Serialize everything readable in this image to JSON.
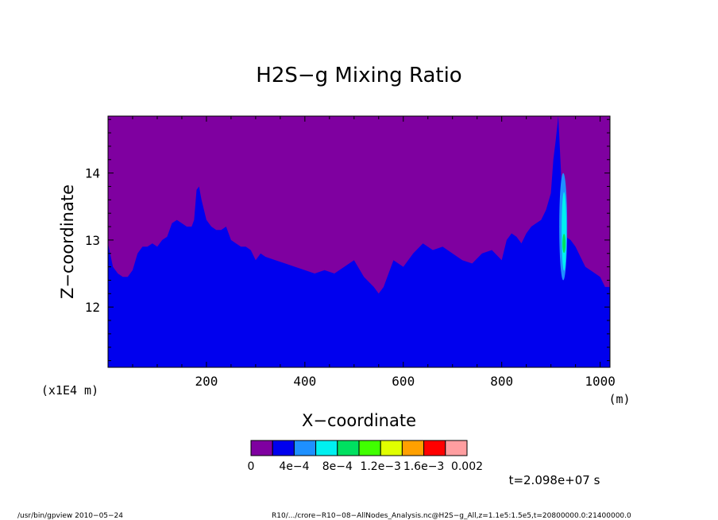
{
  "chart_data": {
    "type": "heatmap",
    "title": "H2S−g Mixing Ratio",
    "xlabel": "X−coordinate",
    "ylabel": "Z−coordinate",
    "x_unit": "(m)",
    "y_unit": "(x1E4 m)",
    "xlim": [
      0,
      1020
    ],
    "ylim": [
      11.1,
      14.85
    ],
    "x_ticks": [
      200,
      400,
      600,
      800,
      1000
    ],
    "x_tick_labels": [
      "200",
      "400",
      "600",
      "800",
      "1000"
    ],
    "y_ticks": [
      12,
      13,
      14
    ],
    "y_tick_labels": [
      "12",
      "13",
      "14"
    ],
    "colorbar": {
      "colors": [
        "#7f00a0",
        "#0000ee",
        "#1e90ff",
        "#00f0f0",
        "#00e060",
        "#40ff00",
        "#e0ff00",
        "#ffa000",
        "#ff0000",
        "#ff9ea0"
      ],
      "labels": [
        "0",
        "4e−4",
        "8e−4",
        "1.2e−3",
        "1.6e−3",
        "0.002"
      ]
    },
    "time_label": "t=2.098e+07 s",
    "boundary_x": [
      0,
      10,
      20,
      30,
      40,
      50,
      60,
      70,
      80,
      90,
      100,
      110,
      120,
      130,
      140,
      150,
      160,
      170,
      175,
      180,
      185,
      190,
      200,
      210,
      220,
      230,
      240,
      250,
      260,
      270,
      280,
      290,
      300,
      310,
      320,
      340,
      360,
      380,
      400,
      420,
      440,
      460,
      480,
      500,
      520,
      540,
      550,
      560,
      570,
      580,
      600,
      620,
      640,
      660,
      680,
      700,
      720,
      740,
      760,
      780,
      800,
      810,
      820,
      830,
      840,
      850,
      860,
      870,
      880,
      890,
      900,
      905,
      910,
      915,
      920,
      925,
      930,
      940,
      950,
      960,
      970,
      980,
      990,
      1000,
      1010,
      1020
    ],
    "boundary_z": [
      12.95,
      12.6,
      12.5,
      12.45,
      12.45,
      12.55,
      12.8,
      12.9,
      12.9,
      12.95,
      12.9,
      13.0,
      13.05,
      13.25,
      13.3,
      13.25,
      13.2,
      13.2,
      13.3,
      13.75,
      13.8,
      13.6,
      13.3,
      13.2,
      13.15,
      13.15,
      13.2,
      13.0,
      12.95,
      12.9,
      12.9,
      12.85,
      12.7,
      12.8,
      12.75,
      12.7,
      12.65,
      12.6,
      12.55,
      12.5,
      12.55,
      12.5,
      12.6,
      12.7,
      12.45,
      12.3,
      12.2,
      12.3,
      12.5,
      12.7,
      12.6,
      12.8,
      12.95,
      12.85,
      12.9,
      12.8,
      12.7,
      12.65,
      12.8,
      12.85,
      12.7,
      13.0,
      13.1,
      13.05,
      12.95,
      13.1,
      13.2,
      13.25,
      13.3,
      13.45,
      13.7,
      14.2,
      14.5,
      14.85,
      14.1,
      13.3,
      13.05,
      13.0,
      12.9,
      12.75,
      12.6,
      12.55,
      12.5,
      12.45,
      12.3,
      12.3
    ],
    "hotspot": {
      "x_center": 925,
      "z_range": [
        12.4,
        14.0
      ]
    }
  },
  "footer": {
    "left": "/usr/bin/gpview   2010−05−24",
    "right": "R10/.../crore−R10−08−AllNodes_Analysis.nc@H2S−g_All,z=1.1e5:1.5e5,t=20800000.0:21400000.0"
  }
}
